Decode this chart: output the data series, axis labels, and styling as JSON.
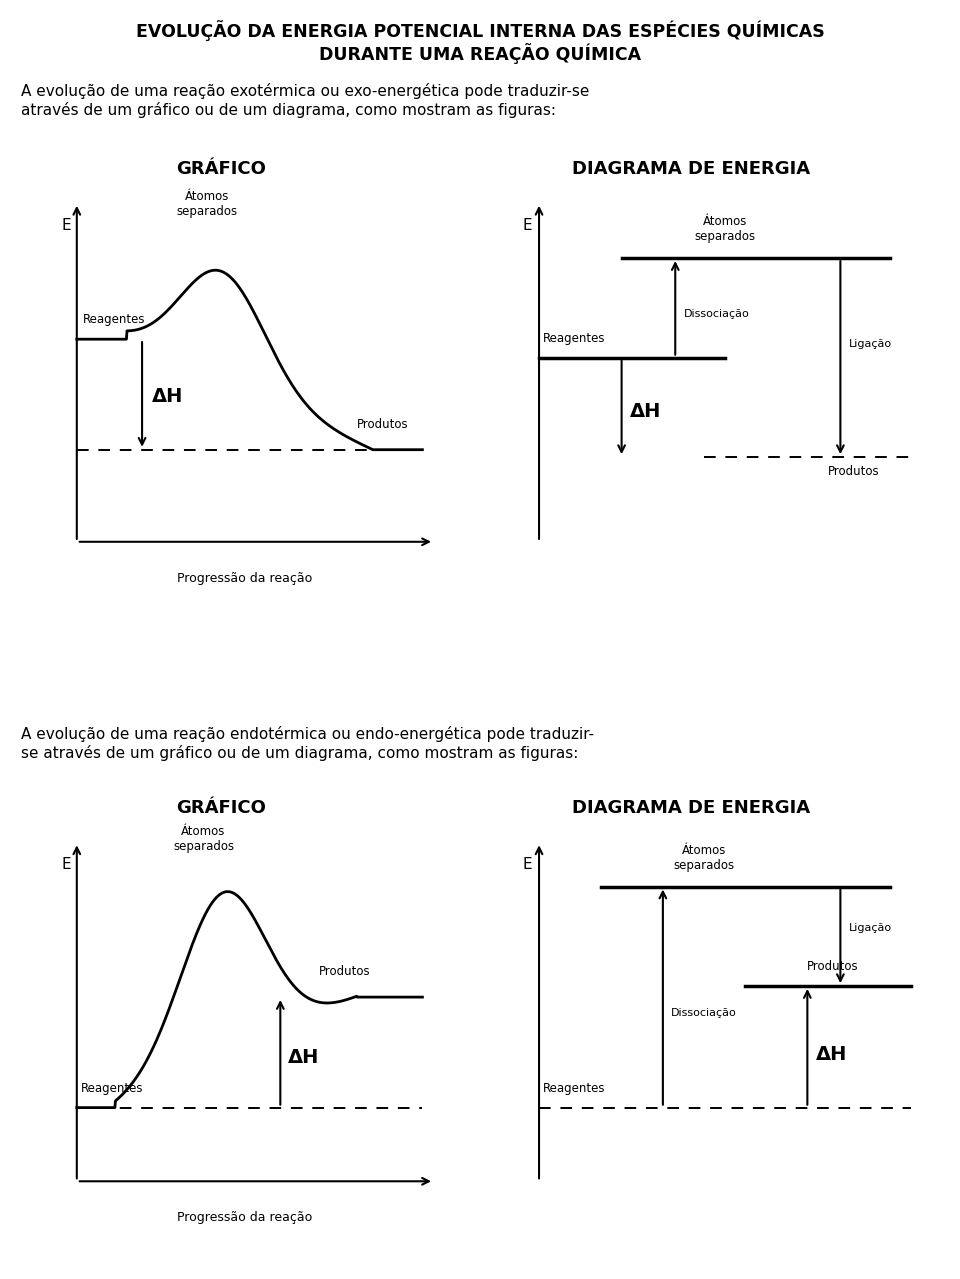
{
  "title_line1": "EVOLUÇÃO DA ENERGIA POTENCIAL INTERNA DAS ESPÉCIES QUÍMICAS",
  "title_line2": "DURANTE UMA REAÇÃO QUÍMICA",
  "text_exo": "A evolução de uma reação exotérmica ou exo-energética pode traduzir-se\natravés de um gráfico ou de um diagrama, como mostram as figuras:",
  "text_endo": "A evolução de uma reação endotérmica ou endo-energética pode traduzir-\nse através de um gráfico ou de um diagrama, como mostram as figuras:",
  "grafico_label": "GRÁFICO",
  "diagrama_label": "DIAGRAMA DE ENERGIA",
  "progressao_label": "Progressão da reação",
  "bg_color": "#ffffff",
  "text_color": "#000000"
}
